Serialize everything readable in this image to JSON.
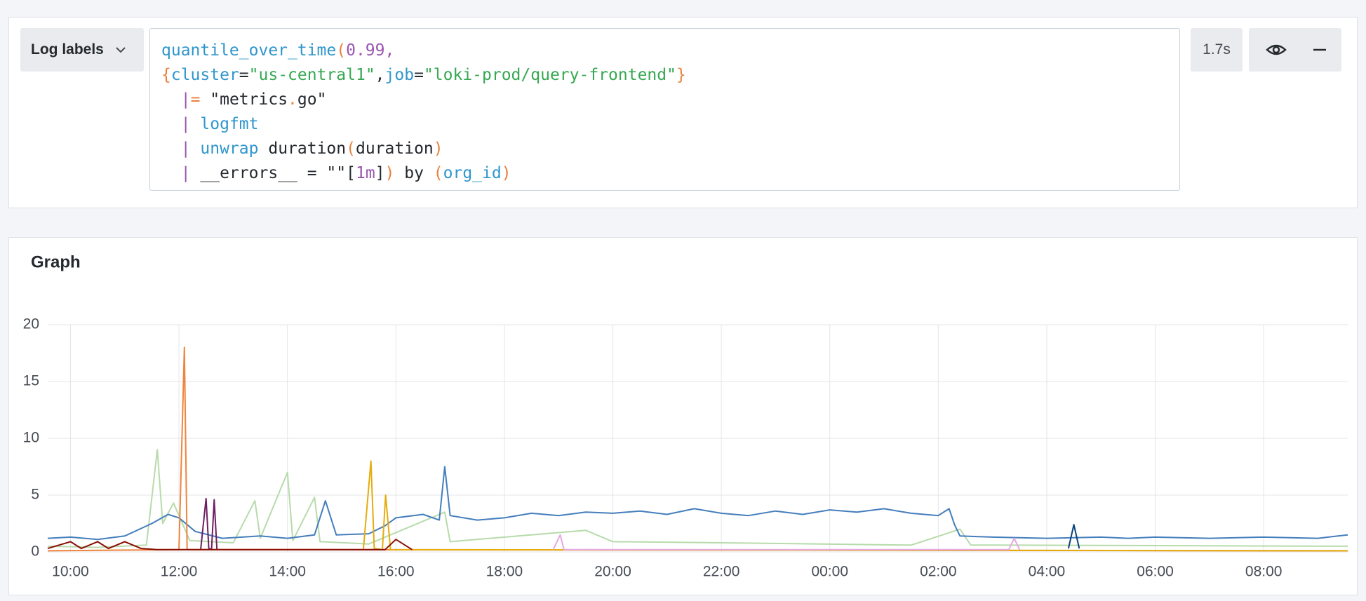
{
  "query_row": {
    "label": "Log labels",
    "duration": "1.7s",
    "lines": [
      [
        {
          "text": "quantile_over_time",
          "color": "#2f96cc"
        },
        {
          "text": "(",
          "color": "#e8823d"
        },
        {
          "text": "0.99",
          "color": "#9a55b0"
        },
        {
          "text": ",",
          "color": "#9a55b0"
        }
      ],
      [
        {
          "text": "{",
          "color": "#e8823d"
        },
        {
          "text": "cluster",
          "color": "#2f96cc"
        },
        {
          "text": "=",
          "color": "#24292e"
        },
        {
          "text": "\"us-central1\"",
          "color": "#36a852"
        },
        {
          "text": ",",
          "color": "#24292e"
        },
        {
          "text": "job",
          "color": "#2f96cc"
        },
        {
          "text": "=",
          "color": "#24292e"
        },
        {
          "text": "\"loki-prod/query-frontend\"",
          "color": "#36a852"
        },
        {
          "text": "}",
          "color": "#e8823d"
        }
      ],
      [
        {
          "text": "  ",
          "color": "#24292e"
        },
        {
          "text": "|",
          "color": "#9a55b0"
        },
        {
          "text": "=",
          "color": "#e8823d"
        },
        {
          "text": " \"metrics",
          "color": "#24292e"
        },
        {
          "text": ".",
          "color": "#e8823d"
        },
        {
          "text": "go\"",
          "color": "#24292e"
        }
      ],
      [
        {
          "text": "  ",
          "color": "#24292e"
        },
        {
          "text": "|",
          "color": "#9a55b0"
        },
        {
          "text": " logfmt",
          "color": "#2f96cc"
        }
      ],
      [
        {
          "text": "  ",
          "color": "#24292e"
        },
        {
          "text": "|",
          "color": "#9a55b0"
        },
        {
          "text": " unwrap",
          "color": "#2f96cc"
        },
        {
          "text": " duration",
          "color": "#24292e"
        },
        {
          "text": "(",
          "color": "#e8823d"
        },
        {
          "text": "duration",
          "color": "#24292e"
        },
        {
          "text": ")",
          "color": "#e8823d"
        }
      ],
      [
        {
          "text": "  ",
          "color": "#24292e"
        },
        {
          "text": "|",
          "color": "#9a55b0"
        },
        {
          "text": " __errors__ = \"\"[",
          "color": "#24292e"
        },
        {
          "text": "1m",
          "color": "#9a55b0"
        },
        {
          "text": "]",
          "color": "#24292e"
        },
        {
          "text": ")",
          "color": "#e8823d"
        },
        {
          "text": " by ",
          "color": "#24292e"
        },
        {
          "text": "(",
          "color": "#e8823d"
        },
        {
          "text": "org_id",
          "color": "#2f96cc"
        },
        {
          "text": ")",
          "color": "#e8823d"
        }
      ]
    ]
  },
  "chart_data": {
    "type": "line",
    "title": "Graph",
    "grid": true,
    "xlim": [
      9.58,
      33.55
    ],
    "ylim": [
      0,
      20
    ],
    "yticks": [
      0,
      5,
      10,
      15,
      20
    ],
    "xticks": [
      {
        "value": 10,
        "label": "10:00"
      },
      {
        "value": 12,
        "label": "12:00"
      },
      {
        "value": 14,
        "label": "14:00"
      },
      {
        "value": 16,
        "label": "16:00"
      },
      {
        "value": 18,
        "label": "18:00"
      },
      {
        "value": 20,
        "label": "20:00"
      },
      {
        "value": 22,
        "label": "22:00"
      },
      {
        "value": 24,
        "label": "00:00"
      },
      {
        "value": 26,
        "label": "02:00"
      },
      {
        "value": 28,
        "label": "04:00"
      },
      {
        "value": 30,
        "label": "06:00"
      },
      {
        "value": 32,
        "label": "08:00"
      }
    ],
    "series": [
      {
        "color": "#b7dbab",
        "x": [
          9.58,
          10.5,
          11.4,
          11.6,
          11.7,
          11.9,
          12.2,
          13.0,
          13.4,
          13.5,
          14.0,
          14.1,
          14.5,
          14.6,
          15.5,
          16.9,
          17.0,
          19.5,
          20.0,
          22.0,
          25.5,
          26.4,
          26.6,
          27.0,
          33.55
        ],
        "values": [
          0.5,
          0.4,
          0.6,
          9.0,
          2.5,
          4.3,
          1.0,
          0.8,
          4.5,
          1.2,
          7.0,
          1.0,
          4.8,
          0.9,
          0.7,
          3.5,
          0.9,
          1.9,
          0.9,
          0.8,
          0.6,
          2.0,
          0.6,
          0.6,
          0.5
        ]
      },
      {
        "color": "#447ebc",
        "x": [
          9.58,
          10.0,
          10.5,
          11.0,
          11.5,
          11.8,
          12.0,
          12.3,
          12.8,
          13.5,
          14.0,
          14.5,
          14.7,
          14.9,
          15.5,
          15.8,
          16.0,
          16.5,
          16.8,
          16.9,
          17.0,
          17.5,
          18.0,
          18.5,
          19.0,
          19.5,
          20.0,
          20.5,
          21.0,
          21.5,
          22.0,
          22.5,
          23.0,
          23.5,
          24.0,
          24.5,
          25.0,
          25.5,
          26.0,
          26.2,
          26.3,
          26.4,
          27.0,
          28.0,
          29.0,
          29.5,
          30.0,
          31.0,
          32.0,
          33.0,
          33.55
        ],
        "values": [
          1.2,
          1.3,
          1.1,
          1.4,
          2.5,
          3.3,
          3.0,
          1.8,
          1.2,
          1.4,
          1.2,
          1.5,
          4.5,
          1.5,
          1.6,
          2.3,
          3.0,
          3.3,
          2.8,
          7.5,
          3.2,
          2.8,
          3.0,
          3.4,
          3.2,
          3.5,
          3.4,
          3.6,
          3.3,
          3.8,
          3.4,
          3.2,
          3.6,
          3.3,
          3.7,
          3.5,
          3.8,
          3.4,
          3.2,
          3.8,
          2.4,
          1.4,
          1.3,
          1.2,
          1.3,
          1.2,
          1.3,
          1.2,
          1.3,
          1.2,
          1.5
        ]
      },
      {
        "color": "#ef843c",
        "x": [
          9.58,
          12.0,
          12.1,
          12.15,
          14.7,
          33.55
        ],
        "values": [
          0.1,
          0.2,
          18.0,
          0.2,
          0.2,
          0.1
        ]
      },
      {
        "color": "#e5ac0e",
        "x": [
          15.4,
          15.54,
          15.6,
          15.75,
          15.81,
          15.9,
          33.55
        ],
        "values": [
          0.2,
          8.0,
          0.3,
          0.2,
          5.0,
          0.2,
          0.1
        ]
      },
      {
        "color": "#6d1f62",
        "x": [
          12.4,
          12.5,
          12.55,
          12.6,
          12.65,
          12.7
        ],
        "values": [
          0.2,
          4.7,
          0.3,
          0.2,
          4.6,
          0.2
        ]
      },
      {
        "color": "#890f02",
        "x": [
          9.58,
          10.0,
          10.2,
          10.5,
          10.7,
          11.0,
          11.3,
          11.6,
          15.8,
          16.0,
          16.3
        ],
        "values": [
          0.3,
          0.9,
          0.3,
          0.9,
          0.3,
          0.9,
          0.3,
          0.2,
          0.2,
          1.1,
          0.2
        ]
      },
      {
        "color": "#e5a8e2",
        "x": [
          18.9,
          19.03,
          19.1,
          27.3,
          27.4,
          27.5
        ],
        "values": [
          0.2,
          1.5,
          0.2,
          0.2,
          1.2,
          0.2
        ]
      },
      {
        "color": "#0a437c",
        "x": [
          28.4,
          28.5,
          28.6
        ],
        "values": [
          0.3,
          2.4,
          0.3
        ]
      }
    ]
  }
}
